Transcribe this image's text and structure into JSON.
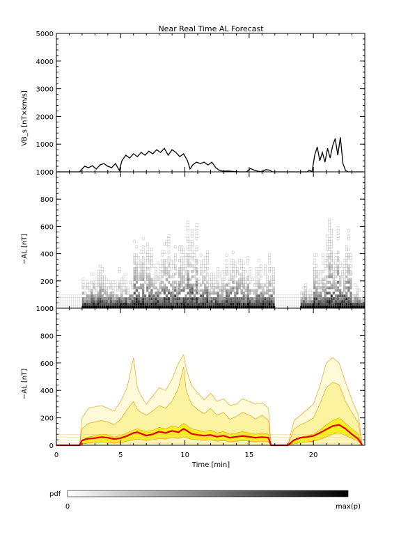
{
  "chart_data": [
    {
      "type": "line",
      "title": "Near Real Time AL Forecast",
      "ylabel": "VB_s [nT×km/s]",
      "ylim": [
        0,
        5000
      ],
      "xlim": [
        0,
        24
      ],
      "yticks": [
        "0",
        "1000",
        "2000",
        "3000",
        "4000",
        "5000"
      ],
      "series": [
        {
          "x": [
            0,
            1.8,
            2.0,
            2.2,
            2.5,
            2.8,
            3.1,
            3.4,
            3.7,
            4.0,
            4.3,
            4.6,
            4.9,
            5.1,
            5.4,
            5.7,
            6.0,
            6.3,
            6.6,
            6.9,
            7.2,
            7.5,
            7.8,
            8.1,
            8.4,
            8.7,
            9.0,
            9.3,
            9.6,
            9.9,
            10.2,
            10.4,
            10.6,
            10.9,
            11.2,
            11.5,
            11.8,
            12.1,
            12.4,
            12.7,
            13.0,
            13.3,
            13.6,
            13.9,
            14.2,
            14.5,
            14.8,
            15.1,
            15.4,
            15.7,
            16.0,
            16.3,
            16.6,
            16.8,
            17.0,
            18.0,
            18.5,
            18.9,
            19.2,
            19.5,
            19.7,
            19.9,
            20.1,
            20.3,
            20.5,
            20.7,
            20.9,
            21.1,
            21.3,
            21.5,
            21.7,
            21.9,
            22.1,
            22.3,
            22.5,
            22.7,
            23.0,
            23.5,
            23.9
          ],
          "values": [
            0,
            0,
            100,
            200,
            150,
            220,
            100,
            250,
            300,
            200,
            150,
            300,
            50,
            400,
            600,
            500,
            650,
            550,
            700,
            600,
            750,
            650,
            800,
            700,
            850,
            600,
            800,
            700,
            550,
            650,
            400,
            100,
            250,
            350,
            300,
            350,
            250,
            350,
            150,
            50,
            20,
            30,
            20,
            10,
            0,
            0,
            0,
            120,
            60,
            20,
            0,
            80,
            60,
            0,
            0,
            0,
            0,
            0,
            0,
            0,
            60,
            10,
            600,
            900,
            400,
            700,
            350,
            850,
            500,
            950,
            1200,
            600,
            1250,
            300,
            50,
            0,
            0,
            0,
            0
          ]
        }
      ]
    },
    {
      "type": "heatmap",
      "ylabel": "−AL [nT]",
      "ylim": [
        0,
        1000
      ],
      "xlim": [
        0,
        24
      ],
      "yticks": [
        "0",
        "200",
        "400",
        "600",
        "800",
        "1000"
      ],
      "x": [
        0,
        1,
        2,
        3,
        4,
        5,
        6,
        7,
        8,
        9,
        10,
        11,
        12,
        13,
        14,
        15,
        16,
        17,
        18,
        19,
        20,
        21,
        22,
        23
      ],
      "max_al": [
        100,
        100,
        300,
        320,
        300,
        280,
        650,
        500,
        550,
        500,
        680,
        450,
        330,
        420,
        400,
        420,
        400,
        380,
        100,
        220,
        420,
        650,
        650,
        200
      ],
      "colorscale_label": "pdf",
      "colorscale_min": "0",
      "colorscale_max": "max(p)"
    },
    {
      "type": "area",
      "ylabel": "−AL [nT]",
      "xlabel": "Time [min]",
      "ylim": [
        0,
        1000
      ],
      "xlim": [
        0,
        24
      ],
      "yticks": [
        "0",
        "200",
        "400",
        "600",
        "800",
        "1000"
      ],
      "xticks": [
        "0",
        "5",
        "10",
        "15",
        "20"
      ],
      "x": [
        0,
        1.8,
        2.0,
        2.5,
        3.0,
        3.5,
        4.0,
        4.5,
        5.0,
        5.5,
        6.0,
        6.3,
        6.6,
        7.0,
        7.5,
        8.0,
        8.5,
        9.0,
        9.5,
        9.9,
        10.1,
        10.5,
        11.0,
        11.5,
        12.0,
        12.5,
        13.0,
        13.5,
        14.0,
        14.5,
        15.0,
        15.5,
        16.0,
        16.5,
        16.7,
        18.0,
        18.5,
        19.0,
        19.5,
        20.0,
        20.5,
        21.0,
        21.5,
        22.0,
        22.5,
        23.0,
        23.5,
        23.8
      ],
      "series": [
        {
          "values": [
            0,
            0,
            10,
            15,
            20,
            25,
            20,
            15,
            20,
            30,
            40,
            45,
            40,
            35,
            40,
            50,
            45,
            55,
            50,
            60,
            55,
            45,
            40,
            35,
            40,
            30,
            35,
            25,
            30,
            35,
            30,
            25,
            30,
            25,
            0,
            0,
            10,
            20,
            25,
            30,
            40,
            60,
            80,
            90,
            70,
            50,
            30,
            0
          ]
        },
        {
          "values": [
            0,
            0,
            40,
            60,
            70,
            80,
            75,
            60,
            70,
            90,
            110,
            120,
            110,
            100,
            110,
            130,
            120,
            140,
            130,
            160,
            150,
            120,
            110,
            100,
            110,
            90,
            100,
            80,
            90,
            100,
            90,
            80,
            90,
            80,
            0,
            0,
            40,
            60,
            70,
            80,
            110,
            150,
            180,
            200,
            160,
            120,
            80,
            0
          ]
        },
        {
          "values": [
            0,
            0,
            120,
            160,
            170,
            180,
            170,
            150,
            190,
            260,
            320,
            260,
            240,
            220,
            250,
            290,
            270,
            320,
            420,
            570,
            400,
            300,
            260,
            230,
            270,
            220,
            240,
            190,
            210,
            240,
            220,
            190,
            220,
            180,
            0,
            0,
            120,
            150,
            170,
            200,
            300,
            420,
            460,
            440,
            320,
            240,
            160,
            0
          ]
        },
        {
          "values": [
            0,
            0,
            200,
            270,
            280,
            290,
            270,
            250,
            320,
            420,
            640,
            420,
            360,
            300,
            360,
            420,
            400,
            480,
            600,
            660,
            560,
            440,
            380,
            330,
            380,
            320,
            340,
            290,
            300,
            340,
            320,
            300,
            310,
            270,
            0,
            0,
            180,
            220,
            260,
            300,
            430,
            600,
            640,
            600,
            460,
            330,
            220,
            0
          ]
        }
      ],
      "baseline": {
        "values": [
          0,
          0,
          12,
          20,
          28,
          32,
          26,
          22,
          28,
          40,
          60,
          55,
          45,
          40,
          48,
          62,
          55,
          70,
          62,
          88,
          75,
          55,
          48,
          42,
          48,
          38,
          42,
          30,
          36,
          42,
          36,
          30,
          36,
          30,
          0,
          0,
          15,
          28,
          35,
          45,
          70,
          100,
          145,
          150,
          110,
          70,
          38,
          0
        ]
      },
      "median": {
        "values": [
          0,
          0,
          35,
          48,
          52,
          60,
          55,
          45,
          52,
          68,
          90,
          95,
          85,
          70,
          80,
          100,
          90,
          105,
          95,
          120,
          110,
          85,
          75,
          70,
          75,
          62,
          70,
          55,
          62,
          68,
          62,
          55,
          60,
          55,
          0,
          0,
          38,
          55,
          60,
          68,
          90,
          115,
          140,
          150,
          120,
          80,
          45,
          0
        ]
      }
    }
  ]
}
